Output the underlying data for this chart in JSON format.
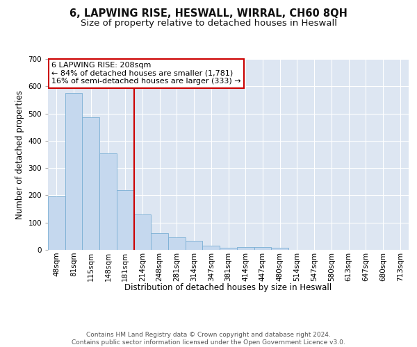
{
  "title": "6, LAPWING RISE, HESWALL, WIRRAL, CH60 8QH",
  "subtitle": "Size of property relative to detached houses in Heswall",
  "xlabel": "Distribution of detached houses by size in Heswall",
  "ylabel": "Number of detached properties",
  "categories": [
    "48sqm",
    "81sqm",
    "115sqm",
    "148sqm",
    "181sqm",
    "214sqm",
    "248sqm",
    "281sqm",
    "314sqm",
    "347sqm",
    "381sqm",
    "414sqm",
    "447sqm",
    "480sqm",
    "514sqm",
    "547sqm",
    "580sqm",
    "613sqm",
    "647sqm",
    "680sqm",
    "713sqm"
  ],
  "values": [
    197,
    575,
    485,
    355,
    220,
    130,
    62,
    45,
    33,
    15,
    8,
    10,
    10,
    8,
    0,
    0,
    0,
    0,
    0,
    0,
    0
  ],
  "bar_color": "#c5d8ee",
  "bar_edge_color": "#7aafd4",
  "vline_index": 4.5,
  "vline_color": "#cc0000",
  "annotation_line1": "6 LAPWING RISE: 208sqm",
  "annotation_line2": "← 84% of detached houses are smaller (1,781)",
  "annotation_line3": "16% of semi-detached houses are larger (333) →",
  "annotation_box_facecolor": "#ffffff",
  "annotation_box_edgecolor": "#cc0000",
  "ylim": [
    0,
    700
  ],
  "yticks": [
    0,
    100,
    200,
    300,
    400,
    500,
    600,
    700
  ],
  "footer_line1": "Contains HM Land Registry data © Crown copyright and database right 2024.",
  "footer_line2": "Contains public sector information licensed under the Open Government Licence v3.0.",
  "fig_facecolor": "#ffffff",
  "plot_facecolor": "#dde6f2",
  "title_fontsize": 10.5,
  "subtitle_fontsize": 9.5,
  "axis_label_fontsize": 8.5,
  "tick_fontsize": 7.5,
  "annotation_fontsize": 8,
  "footer_fontsize": 6.5
}
